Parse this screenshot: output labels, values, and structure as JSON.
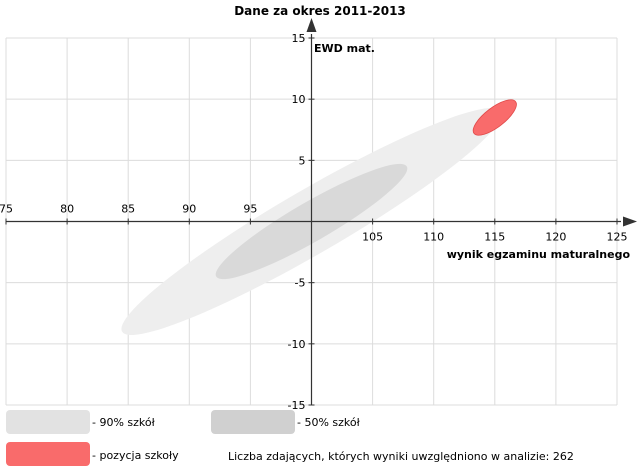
{
  "chart_data": {
    "type": "scatter",
    "title": "Dane za okres 2011-2013",
    "xlabel": "wynik egzaminu maturalnego",
    "ylabel": "EWD mat.",
    "xlim": [
      75,
      125
    ],
    "ylim": [
      -15,
      15
    ],
    "x_ticks": [
      75,
      80,
      85,
      90,
      95,
      105,
      110,
      115,
      120,
      125
    ],
    "y_ticks": [
      15,
      10,
      5,
      -5,
      -10,
      -15
    ],
    "grid": true,
    "ellipses": [
      {
        "name": "90% szkół",
        "color": "#eeeeee",
        "cx": 100,
        "cy": 0,
        "semi_major_end_x": 115.5,
        "semi_major_end_y": 9,
        "semi_minor": 2.6
      },
      {
        "name": "50% szkół",
        "color": "#d9d9d9",
        "cx": 100,
        "cy": 0,
        "semi_major_end_x": 107.8,
        "semi_major_end_y": 4.5,
        "semi_minor": 1.6
      },
      {
        "name": "pozycja szkoły",
        "color": "#f96b6b",
        "cx": 115,
        "cy": 8.5,
        "semi_major_end_x": 116.7,
        "semi_major_end_y": 9.8,
        "semi_minor": 0.8
      }
    ]
  },
  "legend": {
    "items": [
      {
        "label": "- 90% szkół",
        "color": "#e2e2e2"
      },
      {
        "label": "- 50% szkół",
        "color": "#d0d0d0"
      },
      {
        "label": "- pozycja szkoły",
        "color": "#f96b6b"
      }
    ],
    "note": "Liczba zdających, których wyniki uwzględniono w analizie: 262"
  }
}
